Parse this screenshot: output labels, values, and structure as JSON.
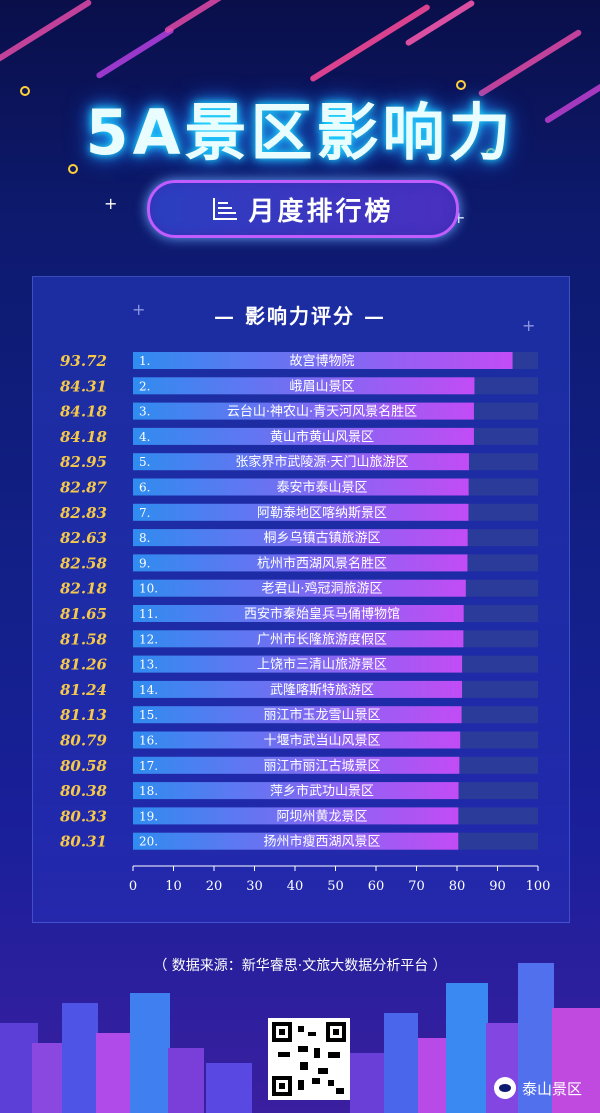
{
  "header": {
    "title": "5A景区影响力",
    "subtitle": "月度排行榜"
  },
  "panel": {
    "title": "— 影响力评分 —"
  },
  "chart_data": {
    "type": "bar",
    "orientation": "horizontal",
    "xlim": [
      0,
      100
    ],
    "ticks": [
      "0",
      "10",
      "20",
      "30",
      "40",
      "50",
      "60",
      "70",
      "80",
      "90",
      "100"
    ],
    "ranks": [
      "1.",
      "2.",
      "3.",
      "4.",
      "5.",
      "6.",
      "7.",
      "8.",
      "9.",
      "10.",
      "11.",
      "12.",
      "13.",
      "14.",
      "15.",
      "16.",
      "17.",
      "18.",
      "19.",
      "20."
    ],
    "categories": [
      "故宫博物院",
      "峨眉山景区",
      "云台山·神农山·青天河风景名胜区",
      "黄山市黄山风景区",
      "张家界市武陵源·天门山旅游区",
      "泰安市泰山景区",
      "阿勒泰地区喀纳斯景区",
      "桐乡乌镇古镇旅游区",
      "杭州市西湖风景名胜区",
      "老君山·鸡冠洞旅游区",
      "西安市秦始皇兵马俑博物馆",
      "广州市长隆旅游度假区",
      "上饶市三清山旅游景区",
      "武隆喀斯特旅游区",
      "丽江市玉龙雪山景区",
      "十堰市武当山风景区",
      "丽江市丽江古城景区",
      "萍乡市武功山景区",
      "阿坝州黄龙景区",
      "扬州市瘦西湖风景区"
    ],
    "values": [
      93.72,
      84.31,
      84.18,
      84.18,
      82.95,
      82.87,
      82.83,
      82.63,
      82.58,
      82.18,
      81.65,
      81.58,
      81.26,
      81.24,
      81.13,
      80.79,
      80.58,
      80.38,
      80.33,
      80.31
    ],
    "value_labels": [
      "93.72",
      "84.31",
      "84.18",
      "84.18",
      "82.95",
      "82.87",
      "82.83",
      "82.63",
      "82.58",
      "82.18",
      "81.65",
      "81.58",
      "81.26",
      "81.24",
      "81.13",
      "80.79",
      "80.58",
      "80.38",
      "80.33",
      "80.31"
    ],
    "colors": {
      "bar_start": "#2f8cf0",
      "bar_end": "#c24cf5",
      "track": "#2a3b9a",
      "value": "#f6c94a"
    }
  },
  "footer": {
    "source": "（ 数据来源：新华睿思·文旅大数据分析平台 ）",
    "brand": "泰山景区"
  }
}
